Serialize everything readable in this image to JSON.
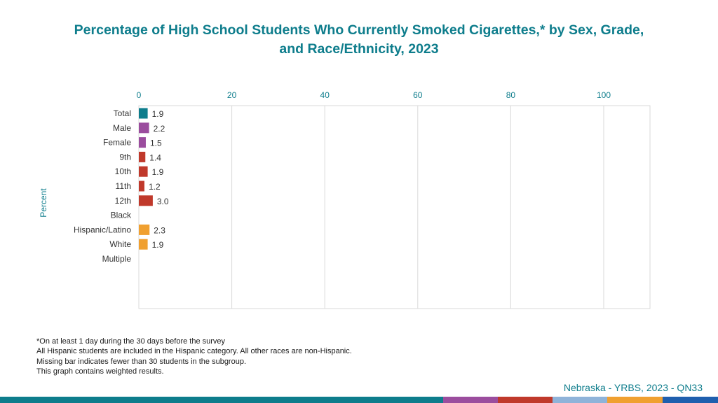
{
  "title": {
    "line1": "Percentage of High School Students Who Currently Smoked Cigarettes,* by Sex, Grade,",
    "line2": "and Race/Ethnicity, 2023"
  },
  "chart_data": {
    "type": "bar",
    "orientation": "horizontal",
    "ylabel": "Percent",
    "xlim": [
      0,
      110
    ],
    "x_ticks": [
      "0",
      "20",
      "40",
      "60",
      "80",
      "100"
    ],
    "grid": true,
    "groups": [
      {
        "color": "#0e7d8c",
        "items": [
          {
            "label": "Total",
            "value": 1.9,
            "display": "1.9"
          }
        ]
      },
      {
        "color": "#9b4d9e",
        "items": [
          {
            "label": "Male",
            "value": 2.2,
            "display": "2.2"
          },
          {
            "label": "Female",
            "value": 1.5,
            "display": "1.5"
          }
        ]
      },
      {
        "color": "#c0392b",
        "items": [
          {
            "label": "9th",
            "value": 1.4,
            "display": "1.4"
          },
          {
            "label": "10th",
            "value": 1.9,
            "display": "1.9"
          },
          {
            "label": "11th",
            "value": 1.2,
            "display": "1.2"
          },
          {
            "label": "12th",
            "value": 3.0,
            "display": "3.0"
          }
        ]
      },
      {
        "color": "#f0a030",
        "items": [
          {
            "label": "Black",
            "value": null,
            "display": ""
          },
          {
            "label": "Hispanic/Latino",
            "value": 2.3,
            "display": "2.3"
          },
          {
            "label": "White",
            "value": 1.9,
            "display": "1.9"
          },
          {
            "label": "Multiple",
            "value": null,
            "display": ""
          }
        ]
      }
    ]
  },
  "footnotes": [
    "*On at least 1 day during the 30 days before the survey",
    "All Hispanic students are included in the Hispanic category.  All other races are non-Hispanic.",
    "Missing bar indicates fewer than 30 students in the subgroup.",
    "This graph contains weighted results."
  ],
  "source": "Nebraska - YRBS, 2023 - QN33",
  "bottom_bar_colors": [
    "#0e7d8c",
    "#9b4d9e",
    "#c0392b",
    "#8fb3d9",
    "#f0a030",
    "#1f5fae"
  ]
}
